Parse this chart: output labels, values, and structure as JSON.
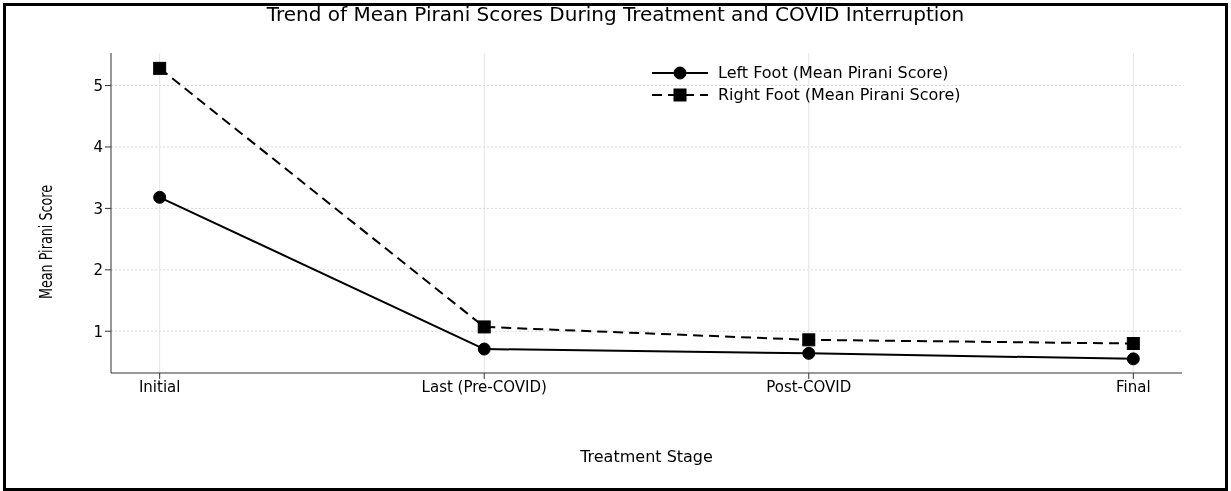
{
  "chart_data": {
    "type": "line",
    "title": "Trend of Mean Pirani Scores During Treatment and COVID Interruption",
    "xlabel": "Treatment Stage",
    "ylabel": "Mean Pirani Score",
    "categories": [
      "Initial",
      "Last (Pre-COVID)",
      "Post-COVID",
      "Final"
    ],
    "series": [
      {
        "name": "Left Foot (Mean Pirani Score)",
        "color": "#000000",
        "values": [
          3.18,
          0.71,
          0.64,
          0.55
        ],
        "marker": "circle",
        "line_style": "solid"
      },
      {
        "name": "Right Foot (Mean Pirani Score)",
        "color": "#000000",
        "values": [
          5.28,
          1.07,
          0.86,
          0.8
        ],
        "marker": "square",
        "line_style": "dashed"
      }
    ],
    "ylim": [
      0.32,
      5.53
    ],
    "yticks": [
      1,
      2,
      3,
      4,
      5
    ],
    "grid": true,
    "legend": "top right"
  }
}
